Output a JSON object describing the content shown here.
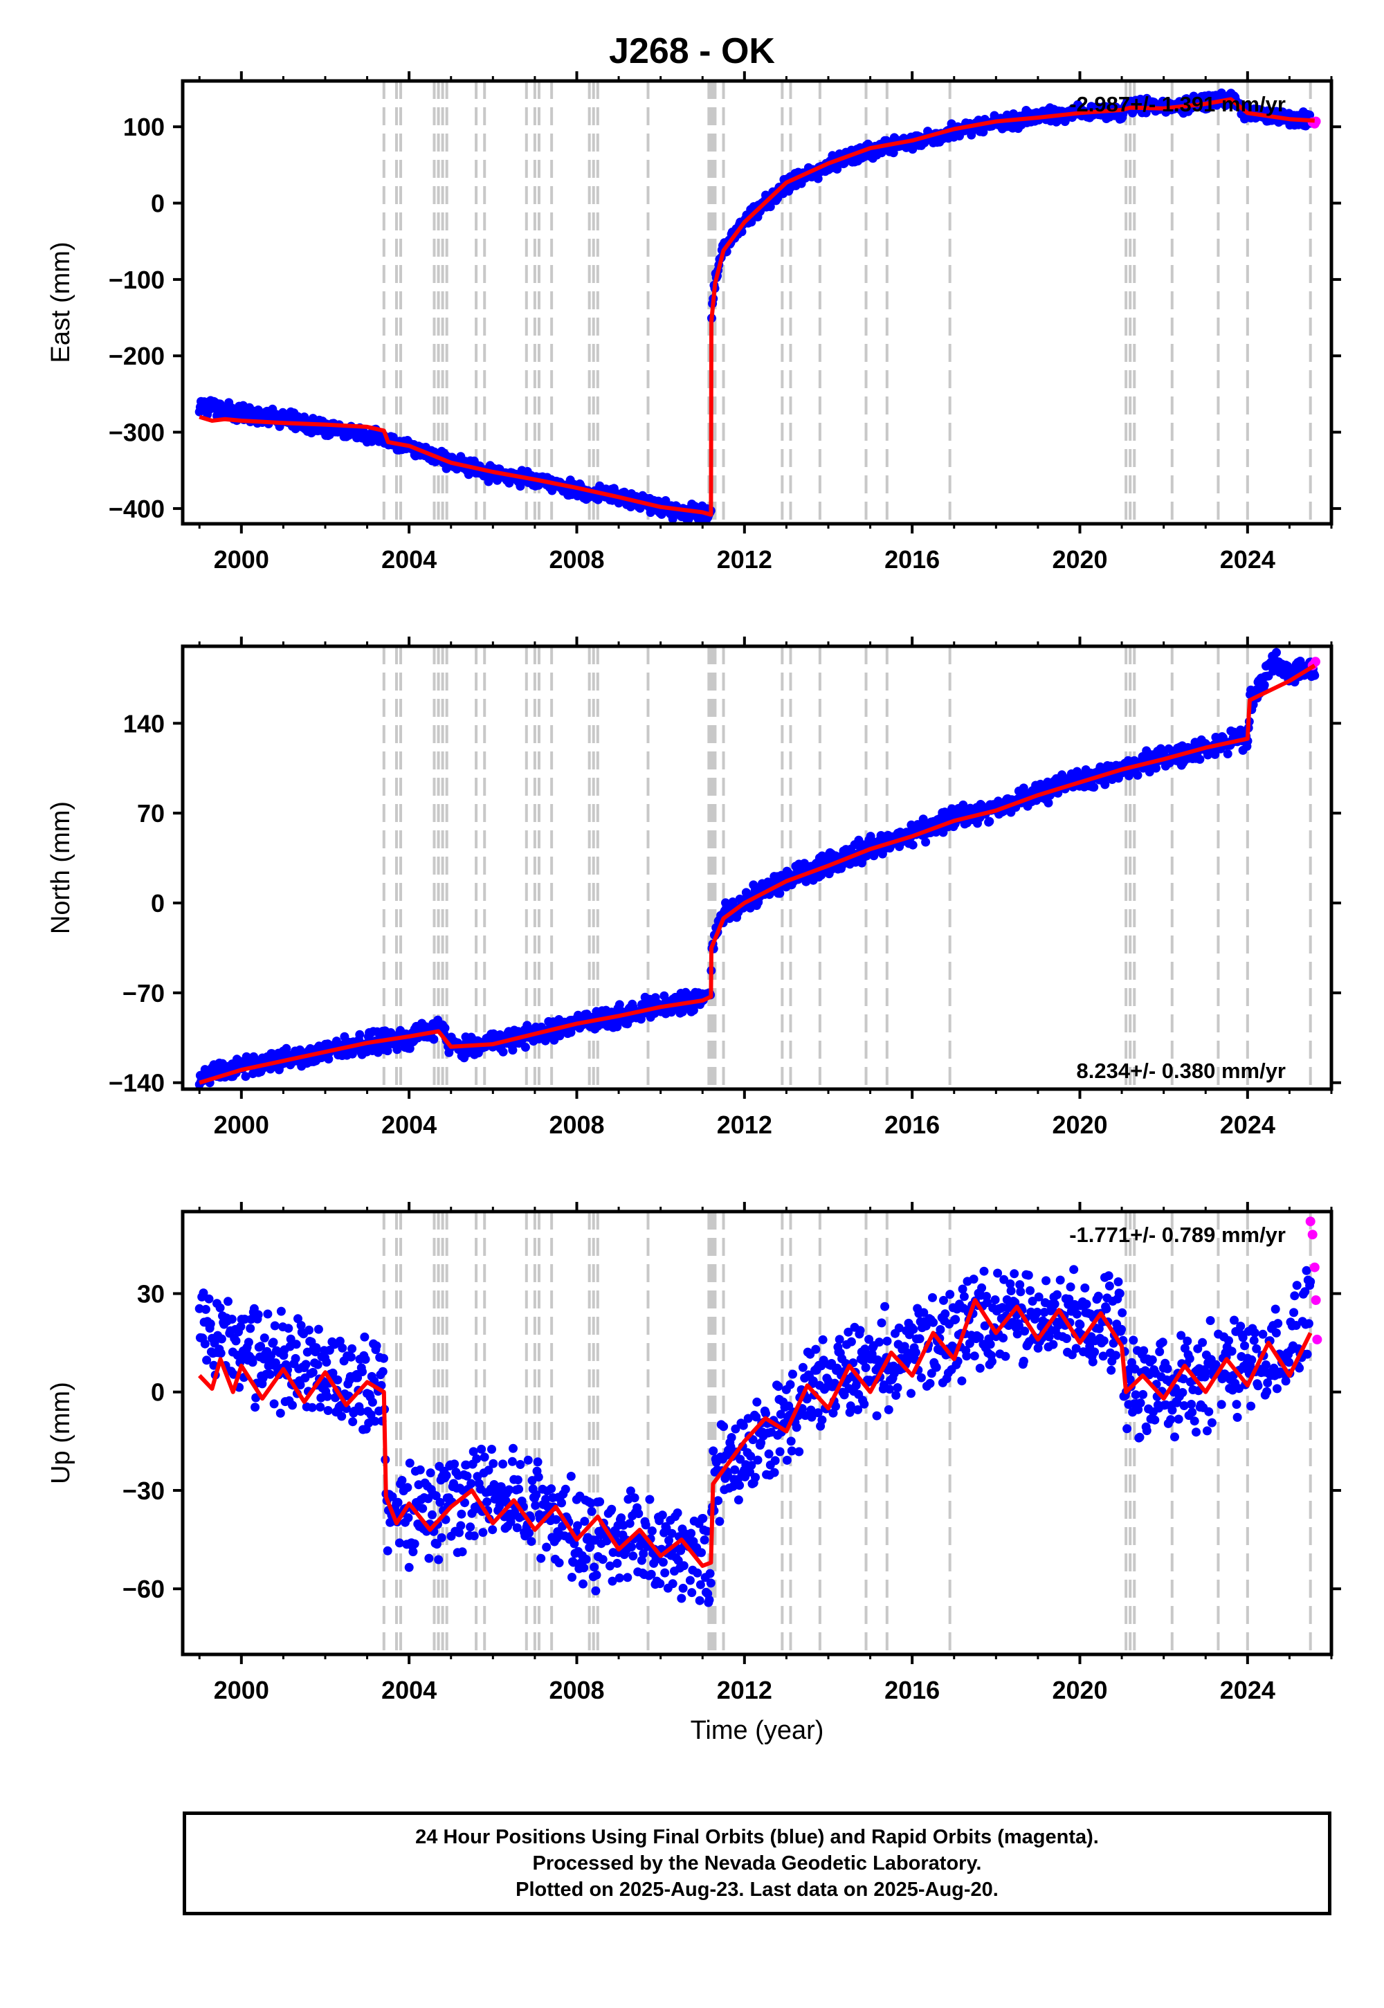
{
  "title": "J268 - OK",
  "footer": {
    "lines": [
      "24 Hour Positions Using Final Orbits (blue) and Rapid Orbits (magenta).",
      "Processed by the Nevada Geodetic Laboratory.",
      "Plotted on 2025-Aug-23. Last data on 2025-Aug-20."
    ]
  },
  "colors": {
    "final_orbits": "#0000ff",
    "rapid_orbits": "#ff00ff",
    "model": "#ff0000",
    "steps": "#c8c8c8"
  },
  "chart_data": [
    {
      "type": "scatter",
      "title": "J268 - OK",
      "ylabel": "East (mm)",
      "xlabel": "",
      "xlim": [
        1998.6,
        2026.0
      ],
      "ylim": [
        -420,
        160
      ],
      "xticks": [
        "2000",
        "2004",
        "2008",
        "2012",
        "2016",
        "2020",
        "2024"
      ],
      "yticks": [
        "100",
        "0",
        "−100",
        "−200",
        "−300",
        "−400"
      ],
      "rate_label": "-2.987+/- 1.391 mm/yr",
      "rate_position": "top-right",
      "grid": false,
      "steps_x": [
        2003.4,
        2003.7,
        2003.8,
        2004.6,
        2004.7,
        2004.8,
        2004.9,
        2005.6,
        2005.8,
        2006.8,
        2007.0,
        2007.1,
        2007.4,
        2008.3,
        2008.4,
        2008.5,
        2009.7,
        2011.15,
        2011.2,
        2011.25,
        2011.3,
        2011.5,
        2012.9,
        2013.1,
        2013.8,
        2014.9,
        2015.4,
        2016.9,
        2021.1,
        2021.2,
        2021.3,
        2022.2,
        2023.3,
        2024.0,
        2025.5
      ],
      "series": [
        {
          "name": "Final Orbits (blue)",
          "x": [
            1999.0,
            2000.0,
            2001.0,
            2002.0,
            2003.0,
            2003.4,
            2003.5,
            2004.0,
            2005.0,
            2006.0,
            2007.0,
            2008.0,
            2009.0,
            2010.0,
            2011.0,
            2011.2,
            2011.21,
            2011.3,
            2011.5,
            2012.0,
            2013.0,
            2014.0,
            2015.0,
            2016.0,
            2017.0,
            2018.0,
            2019.0,
            2020.0,
            2021.0,
            2021.2,
            2022.0,
            2023.0,
            2023.6,
            2024.0,
            2025.0,
            2025.5
          ],
          "y": [
            -265,
            -275,
            -282,
            -295,
            -305,
            -308,
            -313,
            -318,
            -340,
            -355,
            -362,
            -375,
            -385,
            -400,
            -408,
            -410,
            -150,
            -100,
            -60,
            -25,
            25,
            50,
            70,
            80,
            95,
            105,
            113,
            120,
            118,
            128,
            125,
            132,
            138,
            115,
            110,
            108
          ]
        },
        {
          "name": "Rapid Orbits (magenta)",
          "x": [
            2025.55,
            2025.6,
            2025.63
          ],
          "y": [
            106,
            104,
            107
          ]
        },
        {
          "name": "Model",
          "x": [
            1999.0,
            1999.3,
            1999.6,
            2000.0,
            2001.0,
            2002.0,
            2003.0,
            2003.4,
            2003.5,
            2004.0,
            2005.0,
            2006.0,
            2007.0,
            2008.0,
            2009.0,
            2010.0,
            2011.0,
            2011.2,
            2011.21,
            2011.3,
            2011.5,
            2012.0,
            2013.0,
            2014.0,
            2015.0,
            2016.0,
            2017.0,
            2018.0,
            2019.0,
            2020.0,
            2021.0,
            2021.2,
            2022.0,
            2023.0,
            2023.6,
            2024.0,
            2025.0,
            2025.6
          ],
          "y": [
            -280,
            -285,
            -283,
            -285,
            -288,
            -290,
            -293,
            -298,
            -313,
            -318,
            -340,
            -352,
            -362,
            -373,
            -385,
            -398,
            -405,
            -408,
            -155,
            -105,
            -62,
            -25,
            27,
            52,
            72,
            82,
            97,
            107,
            112,
            118,
            122,
            125,
            124,
            130,
            136,
            118,
            110,
            108
          ]
        }
      ]
    },
    {
      "type": "scatter",
      "ylabel": "North (mm)",
      "xlabel": "",
      "xlim": [
        1998.6,
        2026.0
      ],
      "ylim": [
        -145,
        200
      ],
      "xticks": [
        "2000",
        "2004",
        "2008",
        "2012",
        "2016",
        "2020",
        "2024"
      ],
      "yticks": [
        "140",
        "70",
        "0",
        "−70",
        "−140"
      ],
      "rate_label": "8.234+/- 0.380 mm/yr",
      "rate_position": "bottom-right",
      "grid": false,
      "series": [
        {
          "name": "Final Orbits (blue)",
          "x": [
            1999.0,
            2000.0,
            2001.0,
            2002.0,
            2003.0,
            2004.0,
            2004.7,
            2005.0,
            2006.0,
            2007.0,
            2008.0,
            2009.0,
            2010.0,
            2011.0,
            2011.2,
            2011.21,
            2011.5,
            2012.0,
            2013.0,
            2014.0,
            2015.0,
            2016.0,
            2017.0,
            2018.0,
            2019.0,
            2020.0,
            2021.0,
            2022.0,
            2023.0,
            2024.0,
            2024.05,
            2024.6,
            2025.0,
            2025.6
          ],
          "y": [
            -135,
            -128,
            -122,
            -116,
            -110,
            -105,
            -98,
            -112,
            -110,
            -102,
            -93,
            -88,
            -80,
            -75,
            -72,
            -35,
            -10,
            2,
            18,
            30,
            43,
            53,
            65,
            73,
            85,
            95,
            105,
            113,
            122,
            128,
            155,
            190,
            178,
            185
          ]
        },
        {
          "name": "Rapid Orbits (magenta)",
          "x": [
            2025.55,
            2025.62
          ],
          "y": [
            185,
            188
          ]
        },
        {
          "name": "Model",
          "x": [
            1999.0,
            2000.0,
            2001.0,
            2002.0,
            2003.0,
            2004.0,
            2004.7,
            2005.0,
            2006.0,
            2007.0,
            2008.0,
            2009.0,
            2010.0,
            2011.0,
            2011.2,
            2011.21,
            2011.5,
            2012.0,
            2013.0,
            2014.0,
            2015.0,
            2016.0,
            2017.0,
            2018.0,
            2019.0,
            2020.0,
            2021.0,
            2022.0,
            2023.0,
            2024.0,
            2024.05,
            2025.0,
            2025.6
          ],
          "y": [
            -140,
            -130,
            -123,
            -116,
            -109,
            -104,
            -100,
            -112,
            -110,
            -102,
            -94,
            -88,
            -81,
            -76,
            -73,
            -35,
            -12,
            0,
            17,
            29,
            42,
            52,
            64,
            72,
            84,
            94,
            104,
            112,
            121,
            128,
            158,
            173,
            185
          ]
        }
      ]
    },
    {
      "type": "scatter",
      "ylabel": "Up (mm)",
      "xlabel": "Time (year)",
      "xlim": [
        1998.6,
        2026.0
      ],
      "ylim": [
        -80,
        55
      ],
      "xticks": [
        "2000",
        "2004",
        "2008",
        "2012",
        "2016",
        "2020",
        "2024"
      ],
      "yticks": [
        "30",
        "0",
        "−30",
        "−60"
      ],
      "rate_label": "-1.771+/- 0.789 mm/yr",
      "rate_position": "top-right",
      "grid": false,
      "series": [
        {
          "name": "Final Orbits (blue)",
          "x": [
            1999.0,
            1999.5,
            2000.0,
            2001.0,
            2002.0,
            2003.0,
            2003.4,
            2003.45,
            2004.0,
            2005.0,
            2006.0,
            2007.0,
            2008.0,
            2009.0,
            2010.0,
            2011.0,
            2011.2,
            2011.25,
            2012.0,
            2013.0,
            2014.0,
            2015.0,
            2016.0,
            2017.0,
            2018.0,
            2019.0,
            2020.0,
            2021.0,
            2021.1,
            2022.0,
            2023.0,
            2024.0,
            2025.0,
            2025.5
          ],
          "y": [
            22,
            18,
            12,
            8,
            5,
            2,
            0,
            -35,
            -38,
            -35,
            -32,
            -36,
            -42,
            -45,
            -48,
            -50,
            -52,
            -25,
            -18,
            -5,
            2,
            8,
            12,
            18,
            22,
            22,
            20,
            20,
            2,
            3,
            5,
            8,
            12,
            30
          ]
        },
        {
          "name": "Rapid Orbits (magenta)",
          "x": [
            2025.5,
            2025.55,
            2025.6,
            2025.63,
            2025.66
          ],
          "y": [
            52,
            48,
            38,
            28,
            16
          ]
        },
        {
          "name": "Model",
          "x": [
            1999.0,
            1999.3,
            1999.5,
            1999.8,
            2000.0,
            2000.5,
            2001.0,
            2001.5,
            2002.0,
            2002.5,
            2003.0,
            2003.4,
            2003.45,
            2003.7,
            2004.0,
            2004.5,
            2005.0,
            2005.5,
            2006.0,
            2006.5,
            2007.0,
            2007.5,
            2008.0,
            2008.5,
            2009.0,
            2009.5,
            2010.0,
            2010.5,
            2011.0,
            2011.2,
            2011.25,
            2011.6,
            2012.0,
            2012.5,
            2013.0,
            2013.5,
            2014.0,
            2014.5,
            2015.0,
            2015.5,
            2016.0,
            2016.5,
            2017.0,
            2017.5,
            2018.0,
            2018.5,
            2019.0,
            2019.5,
            2020.0,
            2020.5,
            2021.0,
            2021.1,
            2021.5,
            2022.0,
            2022.5,
            2023.0,
            2023.5,
            2024.0,
            2024.5,
            2025.0,
            2025.5
          ],
          "y": [
            5,
            1,
            10,
            0,
            8,
            -2,
            7,
            -3,
            6,
            -4,
            3,
            0,
            -32,
            -40,
            -34,
            -42,
            -35,
            -30,
            -40,
            -33,
            -42,
            -35,
            -45,
            -38,
            -48,
            -42,
            -50,
            -45,
            -53,
            -52,
            -28,
            -22,
            -15,
            -8,
            -12,
            2,
            -5,
            8,
            0,
            12,
            5,
            18,
            10,
            28,
            18,
            26,
            16,
            25,
            15,
            24,
            14,
            0,
            5,
            -2,
            8,
            0,
            10,
            2,
            15,
            5,
            18
          ]
        }
      ]
    }
  ]
}
